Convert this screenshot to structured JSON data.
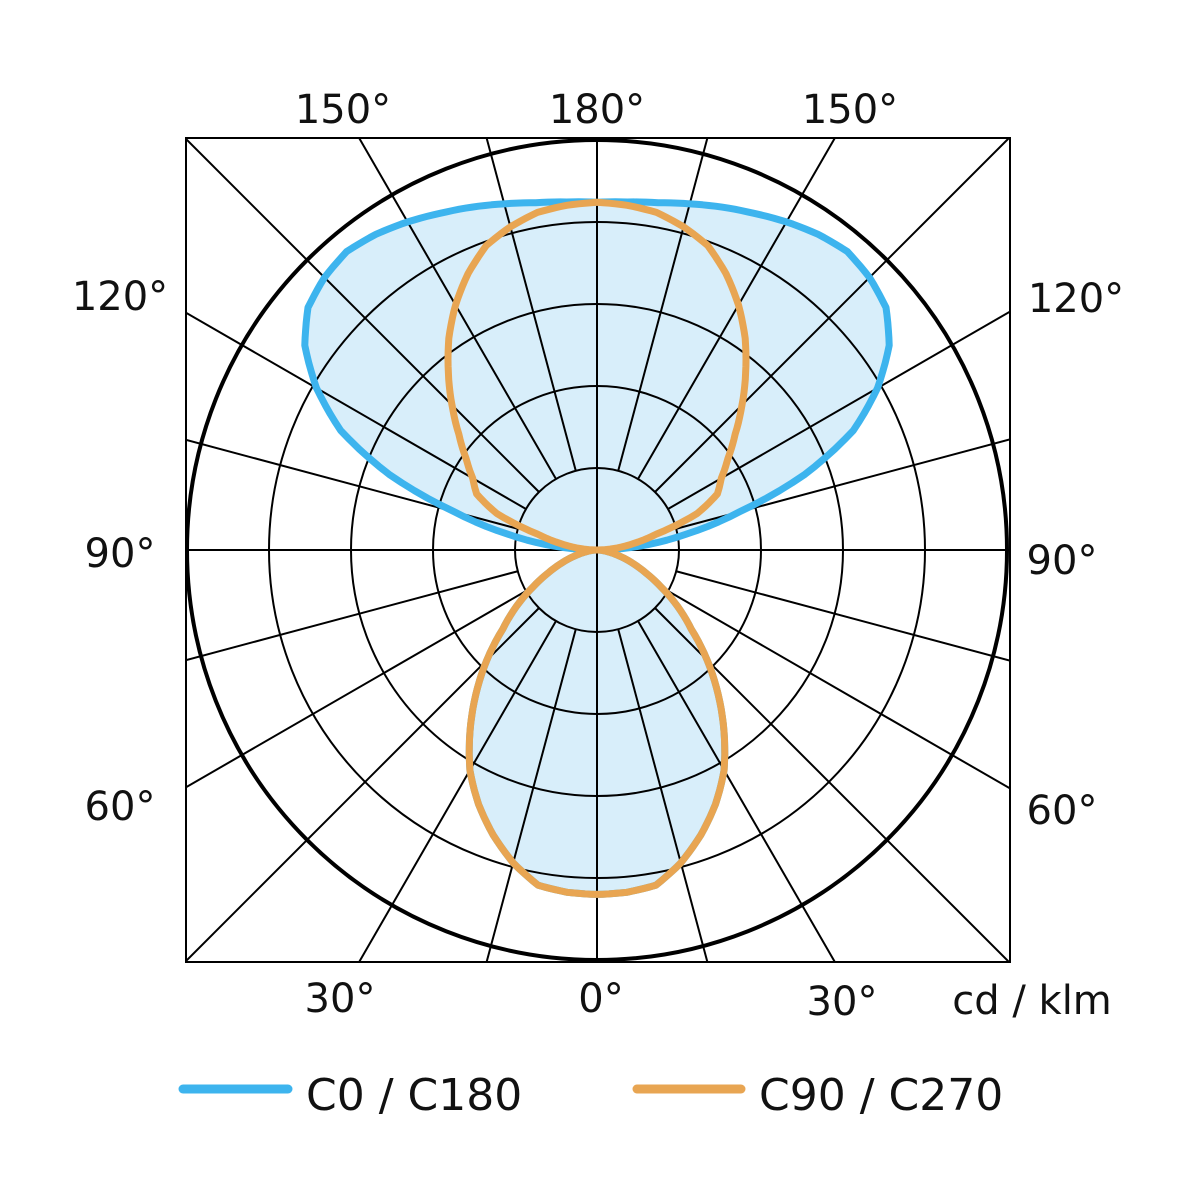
{
  "chart_data": {
    "type": "polar",
    "title": "",
    "unit_label": "cd / klm",
    "angle_labels": {
      "top": [
        "150°",
        "180°",
        "150°"
      ],
      "left": [
        "120°",
        "90°",
        "60°"
      ],
      "right": [
        "120°",
        "90°",
        "60°"
      ],
      "bottom": [
        "30°",
        "0°",
        "30°"
      ]
    },
    "radial_rings": 5,
    "angle_step_deg": 15,
    "gamma_deg": [
      0,
      5,
      10,
      15,
      20,
      25,
      30,
      35,
      40,
      45,
      50,
      55,
      60,
      65,
      70,
      75,
      80,
      85,
      90,
      95,
      100,
      105,
      110,
      115,
      120,
      125,
      130,
      135,
      140,
      145,
      150,
      155,
      160,
      165,
      170,
      175,
      180
    ],
    "series": [
      {
        "name": "C0 / C180",
        "color": "#3db4ee",
        "fill": "#d8eefa",
        "values": [
          4.2,
          4.19,
          4.15,
          3.95,
          3.7,
          3.42,
          3.1,
          2.7,
          2.3,
          1.9,
          1.5,
          1.2,
          0.9,
          0.65,
          0.45,
          0.28,
          0.15,
          0.06,
          0,
          0.5,
          1.1,
          1.8,
          2.7,
          3.45,
          3.95,
          4.35,
          4.6,
          4.7,
          4.75,
          4.7,
          4.62,
          4.53,
          4.45,
          4.37,
          4.3,
          4.26,
          4.24
        ]
      },
      {
        "name": "C90 / C270",
        "color": "#e8a552",
        "values": [
          4.2,
          4.19,
          4.15,
          3.95,
          3.7,
          3.42,
          3.1,
          2.7,
          2.3,
          1.9,
          1.5,
          1.2,
          0.9,
          0.65,
          0.45,
          0.28,
          0.15,
          0.06,
          0,
          0.2,
          0.45,
          0.75,
          1.3,
          1.62,
          1.75,
          1.95,
          2.2,
          2.5,
          2.82,
          3.15,
          3.45,
          3.72,
          3.95,
          4.08,
          4.18,
          4.22,
          4.24
        ]
      }
    ],
    "legend_position": "bottom"
  }
}
